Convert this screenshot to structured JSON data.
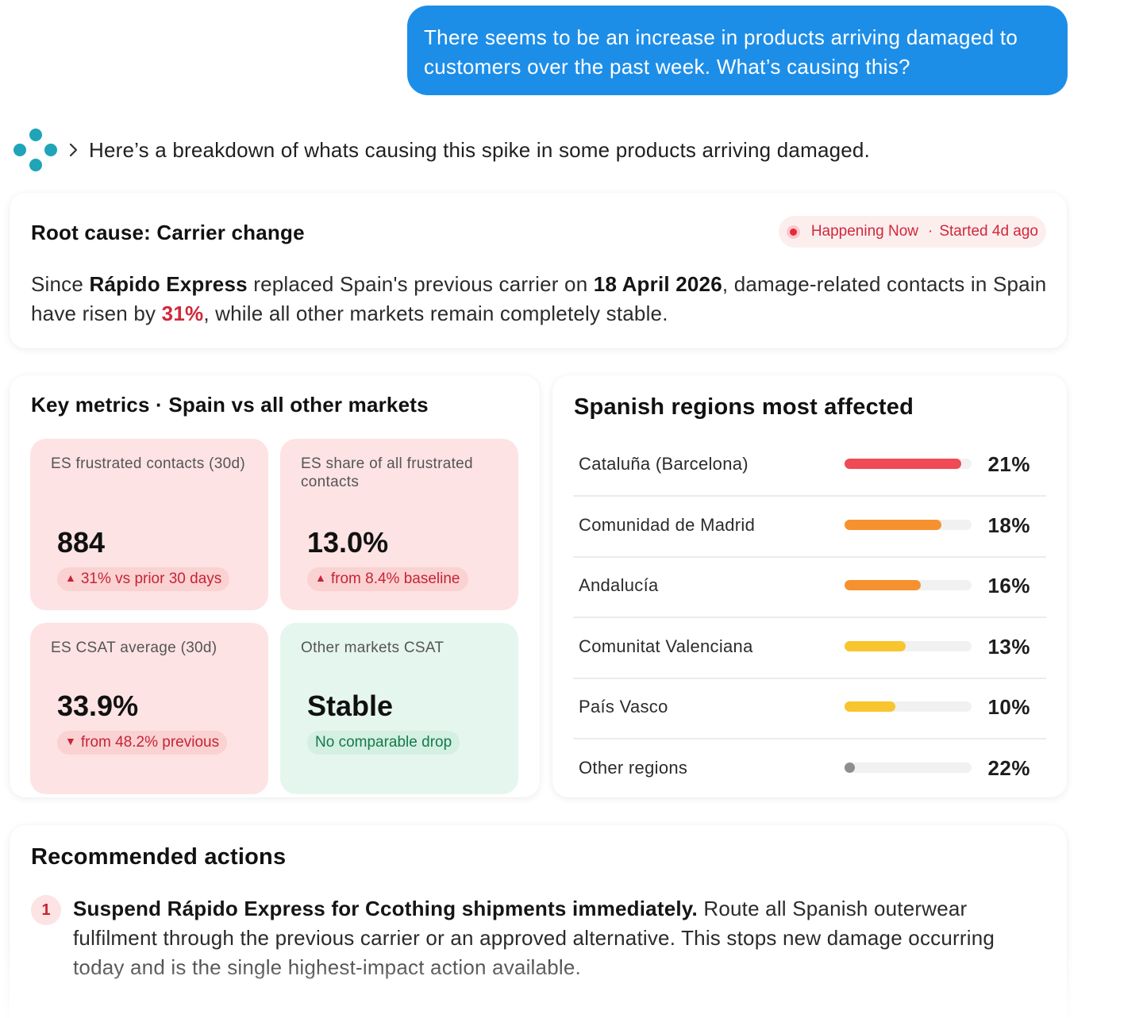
{
  "user_message": "There seems to be an increase in products arriving damaged to customers over the past week. What’s causing this?",
  "assistant": {
    "intro": "Here’s a breakdown of whats causing this spike in some products arriving damaged."
  },
  "root_cause": {
    "title": "Root cause: Carrier change",
    "status": "Happening Now",
    "started": "Started 4d ago",
    "text_1": "Since ",
    "carrier": "Rápido Express",
    "text_2": " replaced Spain's previous carrier on ",
    "date": "18 April 2026",
    "text_3": ", damage-related contacts in Spain have risen by ",
    "increase": "31%",
    "text_4": ", while all other markets remain completely stable."
  },
  "metrics": {
    "title": "Key metrics · Spain vs all other markets",
    "tiles": [
      {
        "label": "ES frustrated contacts (30d)",
        "value": "884",
        "badge": "31% vs prior 30 days",
        "direction": "up",
        "tone": "negative"
      },
      {
        "label": "ES share of all frustrated contacts",
        "value": "13.0%",
        "badge": "from 8.4% baseline",
        "direction": "up",
        "tone": "negative"
      },
      {
        "label": "ES CSAT average (30d)",
        "value": "33.9%",
        "badge": "from 48.2% previous",
        "direction": "down",
        "tone": "negative"
      },
      {
        "label": "Other markets CSAT",
        "value": "Stable",
        "badge": "No comparable drop",
        "direction": "none",
        "tone": "positive"
      }
    ],
    "up_arrow": "▲",
    "down_arrow": "▼"
  },
  "regions": {
    "title": "Spanish regions most affected",
    "items": [
      {
        "name": "Cataluña (Barcelona)",
        "pct_label": "21%",
        "bar_fraction": 0.92,
        "color": "#ef4a55"
      },
      {
        "name": "Comunidad de Madrid",
        "pct_label": "18%",
        "bar_fraction": 0.76,
        "color": "#f5922f"
      },
      {
        "name": "Andalucía",
        "pct_label": "16%",
        "bar_fraction": 0.6,
        "color": "#f5922f"
      },
      {
        "name": "Comunitat Valenciana",
        "pct_label": "13%",
        "bar_fraction": 0.48,
        "color": "#f7c52e"
      },
      {
        "name": "País Vasco",
        "pct_label": "10%",
        "bar_fraction": 0.4,
        "color": "#f7c52e"
      },
      {
        "name": "Other regions",
        "pct_label": "22%",
        "bar_fraction": 0,
        "color": "#8e8e8e"
      }
    ]
  },
  "actions": {
    "title": "Recommended actions",
    "items": [
      {
        "number": "1",
        "headline": "Suspend Rápido Express for Ccothing shipments immediately.",
        "detail": " Route all Spanish outerwear fulfilment through the previous carrier or an approved alternative. This stops new damage occurring today and is the single highest-impact action available."
      }
    ]
  }
}
